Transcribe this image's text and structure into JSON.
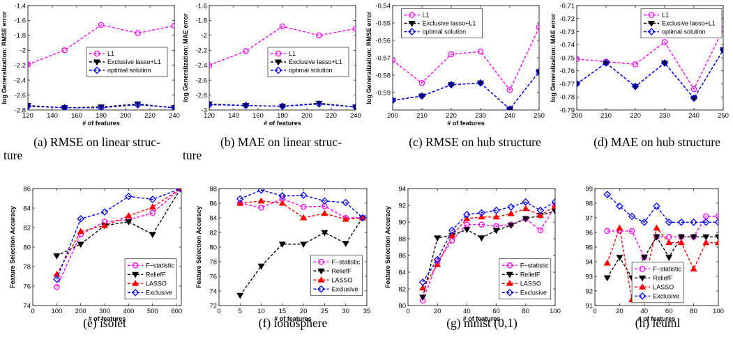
{
  "panels": [
    {
      "caption": [
        "(a) RMSE on linear struc-",
        "ture"
      ],
      "chart_data": {
        "type": "line",
        "xlabel": "# of features",
        "ylabel": "log Generalization: RMSE error",
        "xlim": [
          120,
          240
        ],
        "ylim": [
          -2.8,
          -1.4
        ],
        "xticks": [
          120,
          140,
          160,
          180,
          200,
          220,
          240
        ],
        "yticks": [
          -2.8,
          -2.6,
          -2.4,
          -2.2,
          -2,
          -1.8,
          -1.6,
          -1.4
        ],
        "ytick_labels": [
          "-2.8",
          "-2.6",
          "-2.4",
          "-2.2",
          "-2",
          "-1.8",
          "-1.6",
          "-1.4"
        ],
        "legend_position": "center-right",
        "x": [
          120,
          150,
          180,
          210,
          240
        ],
        "series": [
          {
            "name": "L1",
            "color": "#ff00ff",
            "marker": "circle",
            "values": [
              -2.19,
              -2.0,
              -1.66,
              -1.77,
              -1.67
            ]
          },
          {
            "name": "Exclusive lasso+L1",
            "color": "#000000",
            "marker": "triangle-down",
            "values": [
              -2.74,
              -2.77,
              -2.76,
              -2.72,
              -2.77
            ]
          },
          {
            "name": "optimal solution",
            "color": "#0000ff",
            "marker": "diamond",
            "values": [
              -2.75,
              -2.77,
              -2.77,
              -2.73,
              -2.77
            ]
          }
        ]
      }
    },
    {
      "caption": [
        "(b) MAE on linear struc-",
        "ture"
      ],
      "chart_data": {
        "type": "line",
        "xlabel": "# of features",
        "ylabel": "log Generalization: MAE error",
        "xlim": [
          120,
          240
        ],
        "ylim": [
          -3.0,
          -1.6
        ],
        "xticks": [
          120,
          140,
          160,
          180,
          200,
          220,
          240
        ],
        "yticks": [
          -3.0,
          -2.8,
          -2.6,
          -2.4,
          -2.2,
          -2.0,
          -1.8,
          -1.6
        ],
        "ytick_labels": [
          "-3",
          "-2.8",
          "-2.6",
          "-2.4",
          "-2.2",
          "-2",
          "-1.8",
          "-1.6"
        ],
        "legend_position": "center-right",
        "x": [
          120,
          150,
          180,
          210,
          240
        ],
        "series": [
          {
            "name": "L1",
            "color": "#ff00ff",
            "marker": "circle",
            "values": [
              -2.4,
              -2.21,
              -1.88,
              -2.0,
              -1.91
            ]
          },
          {
            "name": "Exclusive lasso+L1",
            "color": "#000000",
            "marker": "triangle-down",
            "values": [
              -2.92,
              -2.94,
              -2.95,
              -2.91,
              -2.96
            ]
          },
          {
            "name": "optimal solution",
            "color": "#0000ff",
            "marker": "diamond",
            "values": [
              -2.93,
              -2.94,
              -2.95,
              -2.92,
              -2.96
            ]
          }
        ]
      }
    },
    {
      "caption": [
        "(c) RMSE on hub structure"
      ],
      "chart_data": {
        "type": "line",
        "xlabel": "# of features",
        "ylabel": "log Generalization: RMSE error",
        "xlim": [
          200,
          250
        ],
        "ylim": [
          -0.6,
          -0.54
        ],
        "xticks": [
          200,
          210,
          220,
          230,
          240,
          250
        ],
        "yticks": [
          -0.59,
          -0.58,
          -0.57,
          -0.56,
          -0.55,
          -0.54
        ],
        "ytick_labels": [
          "-0.59",
          "-0.58",
          "-0.57",
          "-0.56",
          "-0.55",
          "-0.54"
        ],
        "legend_position": "top-left",
        "x": [
          200,
          210,
          220,
          230,
          240,
          250
        ],
        "series": [
          {
            "name": "L1",
            "color": "#ff00ff",
            "marker": "circle",
            "values": [
              -0.5715,
              -0.5845,
              -0.568,
              -0.5665,
              -0.5885,
              -0.5525
            ]
          },
          {
            "name": "Exclusive lasso+L1",
            "color": "#000000",
            "marker": "triangle-down",
            "values": [
              -0.5945,
              -0.592,
              -0.5855,
              -0.5845,
              -0.5995,
              -0.578
            ]
          },
          {
            "name": "optimal solution",
            "color": "#0000ff",
            "marker": "diamond",
            "values": [
              -0.5945,
              -0.592,
              -0.5855,
              -0.5845,
              -0.5995,
              -0.578
            ]
          }
        ]
      }
    },
    {
      "caption": [
        "(d) MAE on hub structure"
      ],
      "chart_data": {
        "type": "line",
        "xlabel": "",
        "ylabel": "log Generalization: MAE error",
        "xlim": [
          200,
          250
        ],
        "ylim": [
          -0.79,
          -0.71
        ],
        "xticks": [
          200,
          210,
          220,
          230,
          240,
          250
        ],
        "yticks": [
          -0.79,
          -0.78,
          -0.77,
          -0.76,
          -0.75,
          -0.74,
          -0.73,
          -0.72,
          -0.71
        ],
        "ytick_labels": [
          "-0.79",
          "-0.78",
          "-0.77",
          "-0.76",
          "-0.75",
          "-0.74",
          "-0.73",
          "-0.72",
          "-0.71"
        ],
        "legend_position": "top-right",
        "x": [
          200,
          210,
          220,
          230,
          240,
          250
        ],
        "series": [
          {
            "name": "L1",
            "color": "#ff00ff",
            "marker": "circle",
            "values": [
              -0.751,
              -0.753,
              -0.755,
              -0.738,
              -0.774,
              -0.728
            ]
          },
          {
            "name": "Exclusive lasso+L1",
            "color": "#000000",
            "marker": "triangle-down",
            "values": [
              -0.77,
              -0.754,
              -0.772,
              -0.754,
              -0.781,
              -0.744
            ]
          },
          {
            "name": "optimal solution",
            "color": "#0000ff",
            "marker": "diamond",
            "values": [
              -0.77,
              -0.754,
              -0.772,
              -0.754,
              -0.781,
              -0.744
            ]
          }
        ]
      }
    },
    {
      "caption": [
        "(e) isolet"
      ],
      "chart_data": {
        "type": "line",
        "xlabel": "# of features",
        "ylabel": "Feature Selection Accuracy",
        "xlim": [
          0,
          620
        ],
        "ylim": [
          74,
          86
        ],
        "xticks": [
          0,
          100,
          200,
          300,
          400,
          500,
          600
        ],
        "yticks": [
          74,
          76,
          78,
          80,
          82,
          84,
          86
        ],
        "ytick_labels": [
          "74",
          "76",
          "78",
          "80",
          "82",
          "84",
          "86"
        ],
        "legend_position": "bottom-right",
        "x": [
          100,
          200,
          300,
          400,
          500,
          617
        ],
        "series": [
          {
            "name": "F−statistic",
            "color": "#ff00ff",
            "marker": "circle",
            "values": [
              75.9,
              81.3,
              82.6,
              82.8,
              83.5,
              86.0
            ]
          },
          {
            "name": "ReliefF",
            "color": "#000000",
            "marker": "triangle-down",
            "values": [
              79.1,
              80.3,
              82.2,
              82.6,
              81.3,
              86.0
            ]
          },
          {
            "name": "LASSO",
            "color": "#ff0000",
            "marker": "triangle-up",
            "values": [
              77.2,
              81.6,
              82.2,
              83.2,
              84.1,
              86.0
            ]
          },
          {
            "name": "Exclusive",
            "color": "#0000ff",
            "marker": "diamond",
            "values": [
              76.7,
              82.9,
              83.6,
              85.2,
              84.9,
              86.0
            ]
          }
        ]
      }
    },
    {
      "caption": [
        "(f) ionosphere"
      ],
      "chart_data": {
        "type": "line",
        "xlabel": "# of features",
        "ylabel": "Feature Selection Accuracy",
        "xlim": [
          0,
          35
        ],
        "ylim": [
          72,
          88
        ],
        "xticks": [
          0,
          5,
          10,
          15,
          20,
          25,
          30,
          35
        ],
        "yticks": [
          72,
          74,
          76,
          78,
          80,
          82,
          84,
          86,
          88
        ],
        "ytick_labels": [
          "72",
          "74",
          "76",
          "78",
          "80",
          "82",
          "84",
          "86",
          "88"
        ],
        "legend_position": "center-right",
        "x": [
          5,
          10,
          15,
          20,
          25,
          30,
          34
        ],
        "series": [
          {
            "name": "F−statistic",
            "color": "#ff00ff",
            "marker": "circle",
            "values": [
              86.0,
              85.4,
              86.6,
              85.5,
              85.6,
              84.0,
              84.0
            ]
          },
          {
            "name": "ReliefF",
            "color": "#000000",
            "marker": "triangle-down",
            "values": [
              73.4,
              77.4,
              80.4,
              80.4,
              82.0,
              80.5,
              84.0
            ]
          },
          {
            "name": "LASSO",
            "color": "#ff0000",
            "marker": "triangle-up",
            "values": [
              86.0,
              86.3,
              86.0,
              84.0,
              84.6,
              83.8,
              84.0
            ]
          },
          {
            "name": "Exclusive",
            "color": "#0000ff",
            "marker": "diamond",
            "values": [
              86.6,
              87.8,
              87.0,
              87.1,
              86.3,
              86.1,
              84.0
            ]
          }
        ]
      }
    },
    {
      "caption": [
        "(g) mnist (0,1)"
      ],
      "chart_data": {
        "type": "line",
        "xlabel": "# of features",
        "ylabel": "Feature Selection Accuracy",
        "xlim": [
          0,
          100
        ],
        "ylim": [
          80,
          94
        ],
        "xticks": [
          0,
          20,
          40,
          60,
          80,
          100
        ],
        "yticks": [
          80,
          82,
          84,
          86,
          88,
          90,
          92,
          94
        ],
        "ytick_labels": [
          "80",
          "82",
          "84",
          "86",
          "88",
          "90",
          "92",
          "94"
        ],
        "legend_position": "bottom-right",
        "x": [
          10,
          20,
          30,
          40,
          50,
          60,
          70,
          80,
          90,
          100
        ],
        "series": [
          {
            "name": "F−statistic",
            "color": "#ff00ff",
            "marker": "circle",
            "values": [
              80.6,
              85.2,
              87.8,
              89.7,
              89.7,
              89.5,
              89.7,
              90.4,
              89.0,
              91.9
            ]
          },
          {
            "name": "ReliefF",
            "color": "#000000",
            "marker": "triangle-down",
            "values": [
              81.0,
              88.1,
              88.4,
              89.1,
              88.1,
              89.0,
              89.6,
              90.4,
              90.8,
              91.3
            ]
          },
          {
            "name": "LASSO",
            "color": "#ff0000",
            "marker": "triangle-up",
            "values": [
              82.1,
              84.9,
              88.4,
              90.4,
              90.6,
              90.6,
              91.0,
              91.6,
              90.8,
              91.9
            ]
          },
          {
            "name": "Exclusive",
            "color": "#0000ff",
            "marker": "diamond",
            "values": [
              82.8,
              85.5,
              89.0,
              90.9,
              91.1,
              91.4,
              91.8,
              92.4,
              91.4,
              92.4
            ]
          }
        ]
      }
    },
    {
      "caption": [
        "(h) leuml"
      ],
      "chart_data": {
        "type": "line",
        "xlabel": "# of features",
        "ylabel": "",
        "xlim": [
          0,
          100
        ],
        "ylim": [
          91,
          99
        ],
        "xticks": [
          0,
          20,
          40,
          60,
          80,
          100
        ],
        "yticks": [
          91,
          92,
          93,
          94,
          95,
          96,
          97,
          98,
          99
        ],
        "ytick_labels": [
          "91",
          "92",
          "93",
          "94",
          "95",
          "96",
          "97",
          "98",
          "99"
        ],
        "legend_position": "bottom-center",
        "x": [
          10,
          20,
          30,
          40,
          50,
          60,
          70,
          80,
          90,
          100
        ],
        "series": [
          {
            "name": "F−statistic",
            "color": "#ff00ff",
            "marker": "circle",
            "values": [
              96.1,
              96.1,
              96.1,
              94.3,
              95.7,
              95.7,
              95.7,
              95.7,
              97.1,
              97.1
            ]
          },
          {
            "name": "ReliefF",
            "color": "#000000",
            "marker": "triangle-down",
            "values": [
              92.9,
              94.3,
              92.9,
              94.3,
              95.7,
              94.3,
              95.7,
              95.7,
              95.7,
              95.7
            ]
          },
          {
            "name": "LASSO",
            "color": "#ff0000",
            "marker": "triangle-up",
            "values": [
              93.9,
              96.3,
              91.4,
              92.5,
              96.3,
              95.3,
              95.3,
              93.5,
              95.3,
              95.3
            ]
          },
          {
            "name": "Exclusive",
            "color": "#0000ff",
            "marker": "diamond",
            "values": [
              98.6,
              97.8,
              97.1,
              96.7,
              97.8,
              96.7,
              96.7,
              96.7,
              96.7,
              96.7
            ]
          }
        ]
      }
    }
  ]
}
